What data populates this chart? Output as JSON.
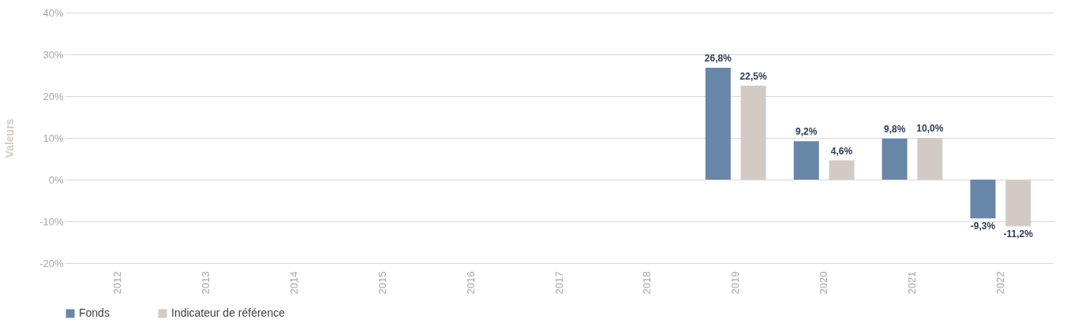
{
  "chart_data": {
    "type": "bar",
    "ylabel": "Valeurs",
    "categories": [
      "2012",
      "2013",
      "2014",
      "2015",
      "2016",
      "2017",
      "2018",
      "2019",
      "2020",
      "2021",
      "2022"
    ],
    "series": [
      {
        "name": "Fonds",
        "color": "#6886a8",
        "values": [
          null,
          null,
          null,
          null,
          null,
          null,
          null,
          26.8,
          9.2,
          9.8,
          -9.3
        ],
        "value_labels": [
          null,
          null,
          null,
          null,
          null,
          null,
          null,
          "26,8%",
          "9,2%",
          "9,8%",
          "-9,3%"
        ]
      },
      {
        "name": "Indicateur de référence",
        "color": "#d3cbc3",
        "values": [
          null,
          null,
          null,
          null,
          null,
          null,
          null,
          22.5,
          4.6,
          10.0,
          -11.2
        ],
        "value_labels": [
          null,
          null,
          null,
          null,
          null,
          null,
          null,
          "22,5%",
          "4,6%",
          "10,0%",
          "-11,2%"
        ]
      }
    ],
    "ylim": [
      -20,
      40
    ],
    "yticks": [
      {
        "value": -20,
        "label": "-20%"
      },
      {
        "value": -10,
        "label": "-10%"
      },
      {
        "value": 0,
        "label": "0%"
      },
      {
        "value": 10,
        "label": "10%"
      },
      {
        "value": 20,
        "label": "20%"
      },
      {
        "value": 30,
        "label": "30%"
      },
      {
        "value": 40,
        "label": "40%"
      }
    ],
    "grid": "y",
    "legend": "bottom"
  }
}
